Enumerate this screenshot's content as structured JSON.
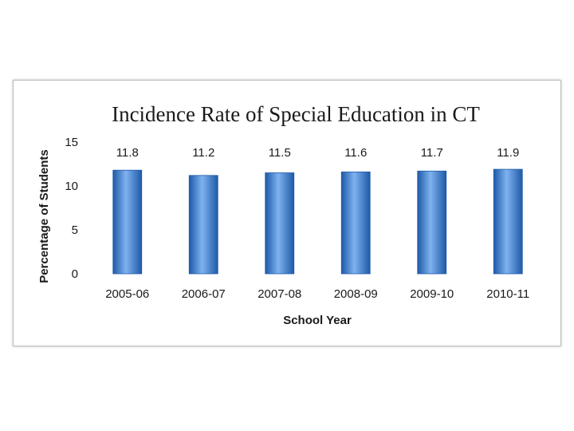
{
  "chart_data": {
    "type": "bar",
    "title": "Incidence Rate of Special Education in CT",
    "xlabel": "School Year",
    "ylabel": "Percentage of Students",
    "categories": [
      "2005-06",
      "2006-07",
      "2007-08",
      "2008-09",
      "2009-10",
      "2010-11"
    ],
    "values": [
      11.8,
      11.2,
      11.5,
      11.6,
      11.7,
      11.9
    ],
    "data_labels": [
      "11.8",
      "11.2",
      "11.5",
      "11.6",
      "11.7",
      "11.9"
    ],
    "ylim": [
      0,
      15
    ],
    "yticks": [
      0,
      5,
      10,
      15
    ],
    "grid": false,
    "legend": "none",
    "bar_color": "#3f7ed6",
    "bar_dark": "#1e5aa8",
    "bar_light": "#7fb2f0"
  }
}
